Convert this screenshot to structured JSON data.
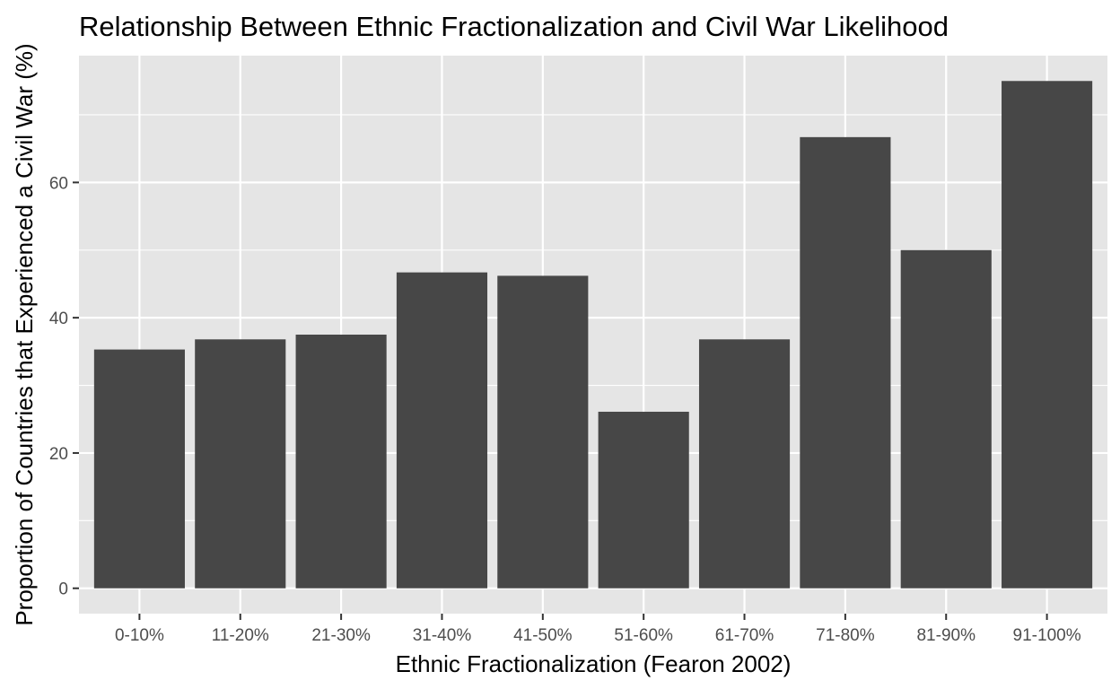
{
  "chart_data": {
    "type": "bar",
    "title": "Relationship Between Ethnic Fractionalization and Civil War Likelihood",
    "xlabel": "Ethnic Fractionalization (Fearon 2002)",
    "ylabel": "Proportion of Countries that Experienced a Civil War (%)",
    "categories": [
      "0-10%",
      "11-20%",
      "21-30%",
      "31-40%",
      "41-50%",
      "51-60%",
      "61-70%",
      "71-80%",
      "81-90%",
      "91-100%"
    ],
    "values": [
      35.3,
      36.8,
      37.5,
      46.7,
      46.2,
      26.1,
      36.8,
      66.7,
      50.0,
      75.0
    ],
    "ylim": [
      -3.75,
      78.75
    ],
    "yticks": [
      0,
      20,
      40,
      60
    ],
    "grid": true,
    "colors": {
      "bar": "#474747",
      "panel": "#e5e5e5",
      "grid": "#ffffff",
      "tick_text": "#4d4d4d"
    }
  }
}
